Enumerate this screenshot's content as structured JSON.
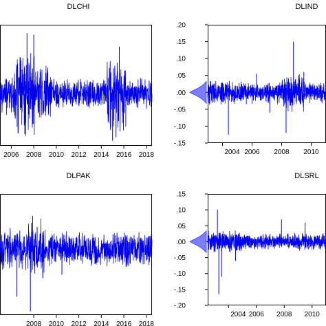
{
  "colors": {
    "series": "#0000ee",
    "density_fill": "#7070ff",
    "axis": "#000000",
    "background": "#ffffff"
  },
  "chart_data": [
    {
      "type": "line",
      "title": "DLCHI",
      "x_ticks": [
        "2006",
        "2008",
        "2010",
        "2012",
        "2014",
        "2016",
        "2018"
      ],
      "y_ticks": [],
      "xlim": [
        2005,
        2018.5
      ],
      "ylim": [
        -0.155,
        0.205
      ],
      "grid": false,
      "series": [
        {
          "values_summary": "daily log returns, clustered volatility",
          "segments": [
            {
              "start": 2005.0,
              "end": 2006.3,
              "amp": 0.045
            },
            {
              "start": 2006.3,
              "end": 2008.3,
              "amp": 0.09
            },
            {
              "start": 2008.3,
              "end": 2009.5,
              "amp": 0.07
            },
            {
              "start": 2009.5,
              "end": 2014.5,
              "amp": 0.035
            },
            {
              "start": 2014.5,
              "end": 2016.2,
              "amp": 0.085
            },
            {
              "start": 2016.2,
              "end": 2018.5,
              "amp": 0.035
            }
          ],
          "spikes": [
            [
              2007.4,
              0.18
            ],
            [
              2008.0,
              0.175
            ],
            [
              2007.2,
              -0.12
            ],
            [
              2015.0,
              -0.14
            ],
            [
              2015.3,
              -0.13
            ],
            [
              2015.6,
              0.14
            ],
            [
              2007.9,
              -0.09
            ]
          ]
        }
      ]
    },
    {
      "type": "line",
      "title": "DLIND",
      "x_ticks": [
        "2004",
        "2006",
        "2008",
        "2010",
        "20"
      ],
      "y_ticks": [
        ".20",
        ".15",
        ".10",
        ".05",
        ".00",
        "-.05",
        "-.10",
        "-.15"
      ],
      "xlim": [
        2003,
        2011
      ],
      "ylim": [
        -0.15,
        0.2
      ],
      "grid": false,
      "has_density": true,
      "series": [
        {
          "values_summary": "daily log returns",
          "segments": [
            {
              "start": 2003.0,
              "end": 2008.0,
              "amp": 0.025
            },
            {
              "start": 2008.0,
              "end": 2009.5,
              "amp": 0.045
            },
            {
              "start": 2009.5,
              "end": 2011.0,
              "amp": 0.025
            }
          ],
          "spikes": [
            [
              2008.8,
              0.15
            ],
            [
              2004.4,
              -0.125
            ],
            [
              2008.3,
              -0.12
            ],
            [
              2006.3,
              0.055
            ],
            [
              2009.5,
              0.06
            ],
            [
              2007.2,
              -0.06
            ]
          ]
        }
      ]
    },
    {
      "type": "line",
      "title": "DLPAK",
      "x_ticks": [
        "2008",
        "2010",
        "2012",
        "2014",
        "2016",
        "2018"
      ],
      "y_ticks": [],
      "xlim": [
        2005,
        2018.5
      ],
      "ylim": [
        -0.18,
        0.15
      ],
      "grid": false,
      "series": [
        {
          "values_summary": "daily log returns, gap near 2008-2009",
          "segments": [
            {
              "start": 2005.0,
              "end": 2007.5,
              "amp": 0.04
            },
            {
              "start": 2007.5,
              "end": 2009.0,
              "amp": 0.06
            },
            {
              "start": 2009.0,
              "end": 2018.5,
              "amp": 0.035
            }
          ],
          "spikes": [
            [
              2007.9,
              0.09
            ],
            [
              2007.7,
              -0.17
            ],
            [
              2008.3,
              0.06
            ],
            [
              2006.5,
              -0.13
            ],
            [
              2010.5,
              -0.07
            ],
            [
              2008.8,
              -0.08
            ]
          ]
        }
      ]
    },
    {
      "type": "line",
      "title": "DLSRL",
      "x_ticks": [
        "2004",
        "2006",
        "2008",
        "2010",
        "20"
      ],
      "y_ticks": [
        ".15",
        ".10",
        ".05",
        ".00",
        "-.05",
        "-.10",
        "-.15",
        "-.20"
      ],
      "xlim": [
        2002.5,
        2011
      ],
      "ylim": [
        -0.2,
        0.15
      ],
      "grid": false,
      "has_density": true,
      "series": [
        {
          "values_summary": "daily log returns",
          "segments": [
            {
              "start": 2002.5,
              "end": 2005.0,
              "amp": 0.025
            },
            {
              "start": 2005.0,
              "end": 2011.0,
              "amp": 0.02
            }
          ],
          "spikes": [
            [
              2003.2,
              0.1
            ],
            [
              2003.3,
              -0.165
            ],
            [
              2003.5,
              -0.11
            ],
            [
              2007.8,
              0.07
            ],
            [
              2004.5,
              -0.06
            ],
            [
              2009.5,
              0.06
            ]
          ]
        }
      ]
    }
  ]
}
